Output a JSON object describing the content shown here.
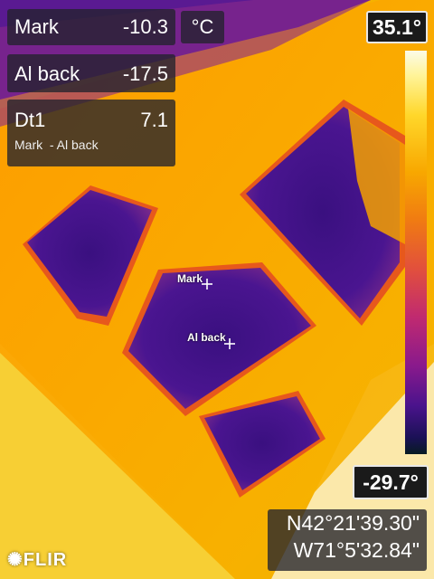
{
  "measurements": [
    {
      "label": "Mark",
      "value": "-10.3"
    },
    {
      "label": "Al back",
      "value": "-17.5"
    }
  ],
  "unit": "°C",
  "delta": {
    "label": "Dt1",
    "value": "7.1",
    "formula": "Mark  - Al back"
  },
  "scale": {
    "max": "35.1°",
    "min": "-29.7°"
  },
  "gps": {
    "lat": "N42°21'39.30\"",
    "lon": "W71°5'32.84\""
  },
  "cursors": [
    {
      "label": "Mark"
    },
    {
      "label": "Al back"
    }
  ],
  "brand": "FLIR",
  "colors": {
    "panel_bg": "#23232d",
    "hot": "#f6b100",
    "cold": "#3a1080"
  }
}
